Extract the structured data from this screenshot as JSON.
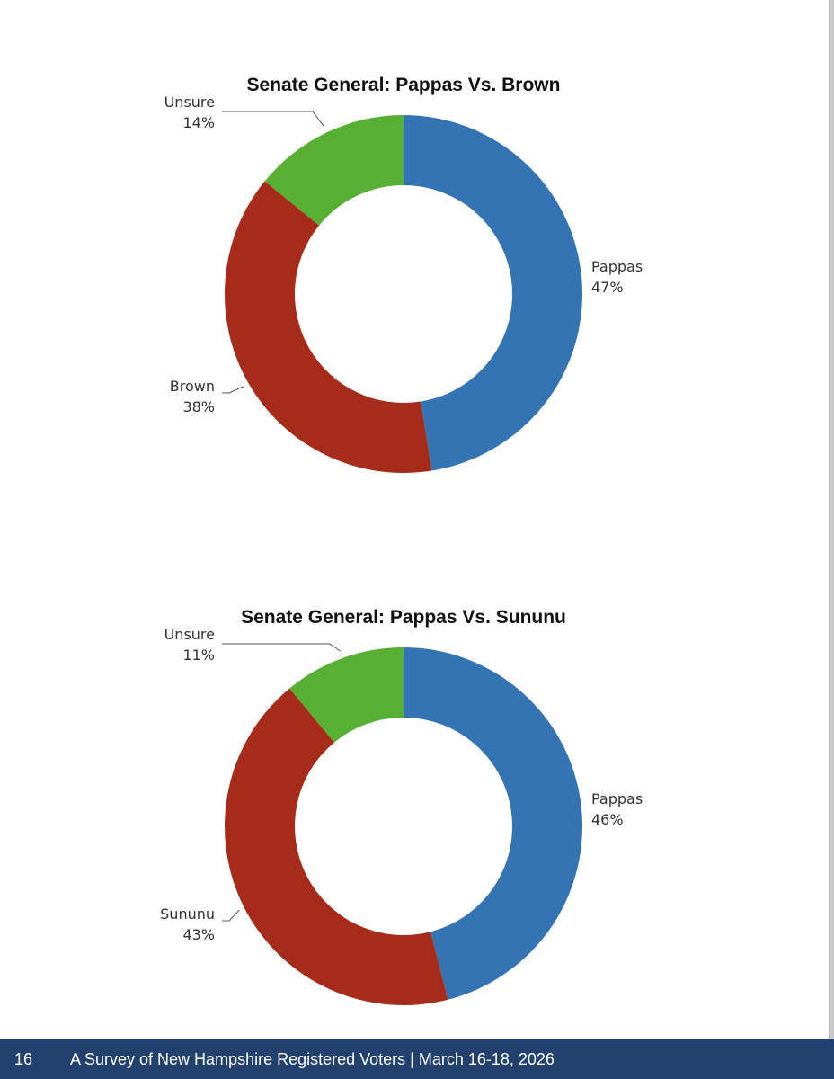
{
  "chart_data": [
    {
      "type": "pie",
      "donut": true,
      "title": "Senate General: Pappas Vs. Brown",
      "categories": [
        "Pappas",
        "Brown",
        "Unsure"
      ],
      "values": [
        47,
        38,
        14
      ],
      "labels": [
        "47%",
        "38%",
        "14%"
      ],
      "colors": [
        "#3474b3",
        "#a62b1a",
        "#57af33"
      ]
    },
    {
      "type": "pie",
      "donut": true,
      "title": "Senate General: Pappas Vs. Sununu",
      "categories": [
        "Pappas",
        "Sununu",
        "Unsure"
      ],
      "values": [
        46,
        43,
        11
      ],
      "labels": [
        "46%",
        "43%",
        "11%"
      ],
      "colors": [
        "#3474b3",
        "#a62b1a",
        "#57af33"
      ]
    }
  ],
  "footer": {
    "page_number": "16",
    "text": "A Survey of New Hampshire Registered Voters | March 16-18, 2026"
  }
}
